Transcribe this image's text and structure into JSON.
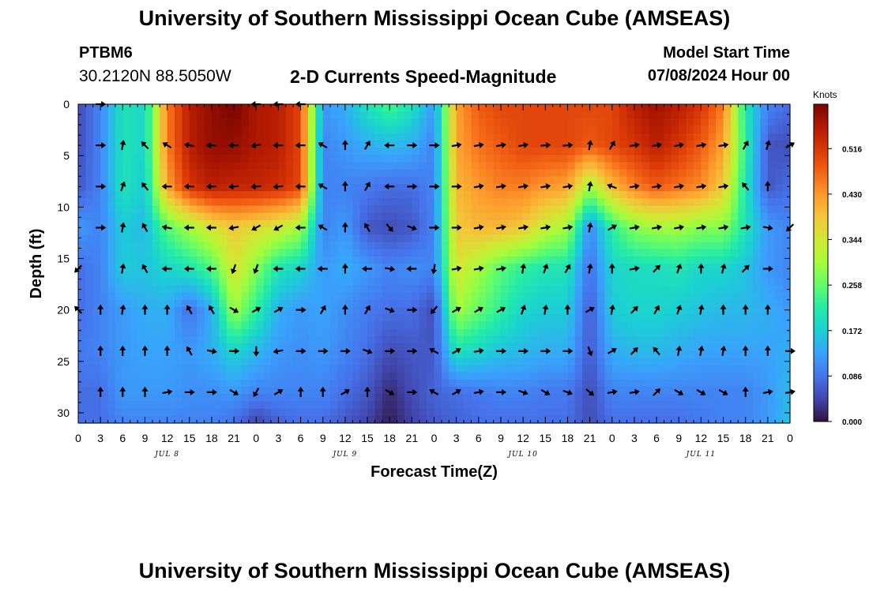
{
  "header": {
    "title": "University of Southern Mississippi Ocean Cube (AMSEAS)",
    "station_id": "PTBM6",
    "station_coords": "30.2120N  88.5050W",
    "plot_title": "2-D Currents Speed-Magnitude",
    "model_label": "Model Start Time",
    "model_date": "07/08/2024 Hour 00"
  },
  "footer": {
    "title": "University of Southern Mississippi Ocean Cube (AMSEAS)"
  },
  "chart_data": {
    "type": "heatmap",
    "title": "2-D Currents Speed-Magnitude",
    "xlabel": "Forecast Time(Z)",
    "ylabel": "Depth (ft)",
    "ylim": [
      0,
      31
    ],
    "y_ticks": [
      0,
      5,
      10,
      15,
      20,
      25,
      30
    ],
    "x_hours_range": [
      0,
      96
    ],
    "x_tick_labels": [
      "0",
      "3",
      "6",
      "9",
      "12",
      "15",
      "18",
      "21",
      "0",
      "3",
      "6",
      "9",
      "12",
      "15",
      "18",
      "21",
      "0",
      "3",
      "6",
      "9",
      "12",
      "15",
      "18",
      "21",
      "0",
      "3",
      "6",
      "9",
      "12",
      "15",
      "18",
      "21",
      "0"
    ],
    "date_labels": [
      {
        "label": "JUL 8",
        "hour": 12
      },
      {
        "label": "JUL 9",
        "hour": 36
      },
      {
        "label": "JUL 10",
        "hour": 60
      },
      {
        "label": "JUL 11",
        "hour": 84
      }
    ],
    "colorbar": {
      "unit": "Knots",
      "ticks": [
        "0.516",
        "0.430",
        "0.344",
        "0.258",
        "0.172",
        "0.086",
        "0.000"
      ],
      "range": [
        0,
        0.6
      ]
    },
    "color_scale": [
      "#30123b",
      "#4145ab",
      "#4675ed",
      "#39a2fc",
      "#1bcfd4",
      "#24eca6",
      "#61fc6c",
      "#a4fc3b",
      "#d1e834",
      "#f3c63a",
      "#fe9b2d",
      "#f36315",
      "#d93806",
      "#b11901",
      "#7a0402"
    ],
    "depths_ft": [
      0,
      4,
      8,
      12,
      16,
      20,
      24,
      28,
      31
    ],
    "times_h": [
      0,
      3,
      6,
      9,
      12,
      15,
      18,
      21,
      24,
      27,
      30,
      33,
      36,
      39,
      42,
      45,
      48,
      51,
      54,
      57,
      60,
      63,
      66,
      69,
      72,
      75,
      78,
      81,
      84,
      87,
      90,
      93,
      96
    ],
    "speed_knots": [
      [
        0.05,
        0.1,
        0.2,
        0.18,
        0.45,
        0.55,
        0.58,
        0.6,
        0.56,
        0.55,
        0.5,
        0.12,
        0.14,
        0.2,
        0.24,
        0.2,
        0.12,
        0.42,
        0.48,
        0.5,
        0.5,
        0.5,
        0.5,
        0.5,
        0.5,
        0.55,
        0.57,
        0.55,
        0.52,
        0.45,
        0.2,
        0.1,
        0.08
      ],
      [
        0.05,
        0.1,
        0.2,
        0.18,
        0.45,
        0.55,
        0.58,
        0.58,
        0.56,
        0.55,
        0.5,
        0.1,
        0.12,
        0.14,
        0.15,
        0.14,
        0.1,
        0.42,
        0.46,
        0.48,
        0.5,
        0.5,
        0.5,
        0.48,
        0.5,
        0.52,
        0.55,
        0.52,
        0.48,
        0.42,
        0.22,
        0.06,
        0.05
      ],
      [
        0.06,
        0.1,
        0.2,
        0.17,
        0.42,
        0.52,
        0.55,
        0.54,
        0.54,
        0.53,
        0.5,
        0.1,
        0.1,
        0.09,
        0.08,
        0.08,
        0.1,
        0.4,
        0.43,
        0.45,
        0.45,
        0.43,
        0.42,
        0.3,
        0.4,
        0.45,
        0.48,
        0.46,
        0.44,
        0.38,
        0.2,
        0.06,
        0.08
      ],
      [
        0.12,
        0.1,
        0.17,
        0.15,
        0.25,
        0.3,
        0.35,
        0.38,
        0.36,
        0.34,
        0.3,
        0.1,
        0.12,
        0.06,
        0.05,
        0.06,
        0.1,
        0.38,
        0.4,
        0.4,
        0.38,
        0.33,
        0.3,
        0.1,
        0.22,
        0.28,
        0.3,
        0.3,
        0.28,
        0.28,
        0.2,
        0.12,
        0.1
      ],
      [
        0.08,
        0.1,
        0.17,
        0.16,
        0.18,
        0.2,
        0.24,
        0.35,
        0.28,
        0.2,
        0.18,
        0.12,
        0.14,
        0.12,
        0.1,
        0.11,
        0.1,
        0.35,
        0.3,
        0.25,
        0.22,
        0.2,
        0.2,
        0.08,
        0.18,
        0.19,
        0.19,
        0.2,
        0.18,
        0.18,
        0.16,
        0.12,
        0.1
      ],
      [
        0.08,
        0.1,
        0.12,
        0.14,
        0.14,
        0.08,
        0.14,
        0.3,
        0.22,
        0.14,
        0.12,
        0.13,
        0.11,
        0.09,
        0.08,
        0.08,
        0.05,
        0.3,
        0.26,
        0.22,
        0.18,
        0.17,
        0.17,
        0.06,
        0.17,
        0.18,
        0.18,
        0.17,
        0.16,
        0.15,
        0.15,
        0.14,
        0.12
      ],
      [
        0.09,
        0.1,
        0.12,
        0.13,
        0.13,
        0.12,
        0.14,
        0.18,
        0.15,
        0.12,
        0.11,
        0.12,
        0.1,
        0.08,
        0.05,
        0.06,
        0.06,
        0.2,
        0.18,
        0.16,
        0.15,
        0.14,
        0.14,
        0.06,
        0.14,
        0.15,
        0.15,
        0.14,
        0.13,
        0.13,
        0.13,
        0.13,
        0.14
      ],
      [
        0.08,
        0.08,
        0.12,
        0.12,
        0.12,
        0.11,
        0.11,
        0.12,
        0.1,
        0.1,
        0.1,
        0.1,
        0.08,
        0.06,
        0.02,
        0.05,
        0.07,
        0.08,
        0.09,
        0.1,
        0.1,
        0.09,
        0.09,
        0.05,
        0.1,
        0.1,
        0.1,
        0.1,
        0.1,
        0.1,
        0.1,
        0.12,
        0.15
      ],
      [
        0.08,
        0.08,
        0.1,
        0.1,
        0.1,
        0.1,
        0.1,
        0.08,
        0.04,
        0.07,
        0.08,
        0.08,
        0.06,
        0.04,
        0.01,
        0.04,
        0.06,
        0.07,
        0.08,
        0.08,
        0.08,
        0.08,
        0.08,
        0.05,
        0.08,
        0.08,
        0.08,
        0.08,
        0.09,
        0.1,
        0.1,
        0.12,
        0.16
      ]
    ],
    "arrow_depths_ft": [
      0,
      4,
      8,
      12,
      16,
      20,
      24,
      28
    ],
    "arrow_times_h": [
      0,
      3,
      6,
      9,
      12,
      15,
      18,
      21,
      24,
      27,
      30,
      33,
      36,
      39,
      42,
      45,
      48,
      51,
      54,
      57,
      60,
      63,
      66,
      69,
      72,
      75,
      78,
      81,
      84,
      87,
      90,
      93,
      96
    ],
    "arrow_directions_deg": [
      [
        null,
        90,
        null,
        null,
        null,
        null,
        null,
        null,
        270,
        270,
        270,
        null,
        null,
        null,
        null,
        null,
        null,
        null,
        null,
        null,
        null,
        null,
        null,
        null,
        null,
        null,
        null,
        null,
        null,
        null,
        null,
        null,
        null
      ],
      [
        null,
        90,
        10,
        315,
        300,
        280,
        270,
        270,
        260,
        270,
        270,
        300,
        0,
        30,
        270,
        90,
        90,
        80,
        80,
        80,
        80,
        85,
        85,
        10,
        30,
        80,
        80,
        80,
        80,
        80,
        30,
        15,
        60
      ],
      [
        null,
        90,
        20,
        320,
        270,
        270,
        270,
        265,
        265,
        265,
        270,
        300,
        0,
        30,
        270,
        90,
        90,
        90,
        80,
        80,
        80,
        80,
        80,
        10,
        290,
        80,
        80,
        80,
        80,
        80,
        320,
        0,
        null
      ],
      [
        null,
        90,
        10,
        330,
        280,
        270,
        270,
        260,
        240,
        240,
        270,
        300,
        0,
        330,
        140,
        110,
        90,
        90,
        80,
        80,
        80,
        80,
        80,
        10,
        60,
        80,
        80,
        80,
        80,
        80,
        80,
        100,
        225
      ],
      [
        225,
        null,
        10,
        330,
        270,
        270,
        270,
        200,
        200,
        270,
        270,
        270,
        0,
        270,
        100,
        270,
        190,
        80,
        80,
        80,
        10,
        20,
        30,
        10,
        0,
        80,
        45,
        20,
        0,
        15,
        45,
        90,
        null
      ],
      [
        315,
        0,
        10,
        0,
        0,
        330,
        330,
        120,
        60,
        60,
        90,
        30,
        0,
        30,
        110,
        90,
        220,
        60,
        60,
        60,
        20,
        10,
        0,
        60,
        10,
        45,
        30,
        20,
        10,
        0,
        0,
        0,
        null
      ],
      [
        null,
        0,
        0,
        0,
        0,
        330,
        100,
        90,
        180,
        260,
        90,
        90,
        90,
        110,
        90,
        90,
        300,
        60,
        80,
        90,
        90,
        90,
        90,
        160,
        60,
        45,
        320,
        10,
        10,
        10,
        0,
        0,
        90
      ],
      [
        null,
        0,
        0,
        0,
        80,
        90,
        90,
        120,
        210,
        60,
        0,
        0,
        60,
        0,
        120,
        90,
        300,
        60,
        80,
        90,
        110,
        120,
        110,
        130,
        80,
        80,
        45,
        120,
        120,
        120,
        0,
        80,
        80
      ]
    ]
  }
}
